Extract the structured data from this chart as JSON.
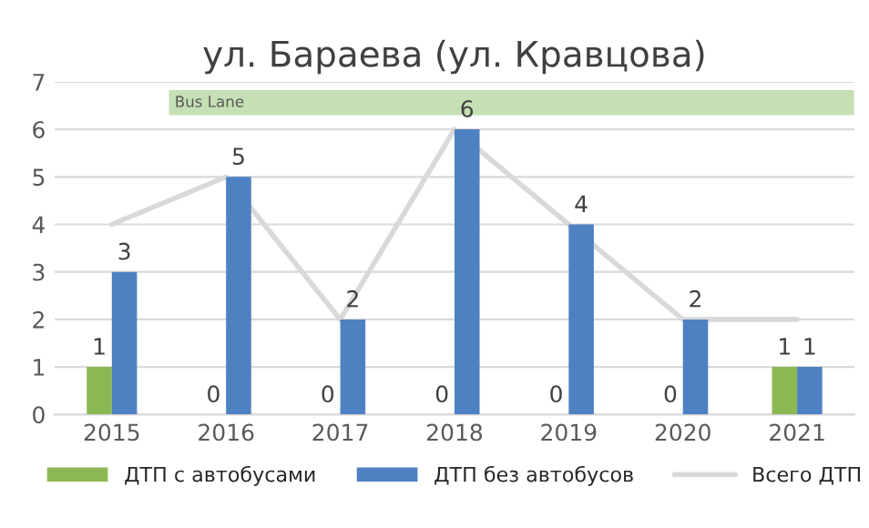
{
  "chart_data": {
    "type": "bar",
    "title": "ул. Бараева (ул. Кравцова)",
    "categories": [
      "2015",
      "2016",
      "2017",
      "2018",
      "2019",
      "2020",
      "2021"
    ],
    "series": [
      {
        "name": "ДТП с автобусами",
        "color": "#8cb854",
        "values": [
          1,
          0,
          0,
          0,
          0,
          0,
          1
        ],
        "value_labels": [
          "1",
          "0",
          "0",
          "0",
          "0",
          "0",
          "1"
        ]
      },
      {
        "name": "ДТП без автобусов",
        "color": "#4e81c1",
        "values": [
          3,
          5,
          2,
          6,
          4,
          2,
          1
        ],
        "value_labels": [
          "3",
          "5",
          "2",
          "6",
          "4",
          "2",
          "1"
        ]
      },
      {
        "name": "Всего ДТП",
        "type": "line",
        "color": "#d9d9d9",
        "values": [
          4,
          5,
          2,
          6,
          4,
          2,
          2
        ]
      }
    ],
    "bands": [
      {
        "axis": "x",
        "from": "2016",
        "to": "2021",
        "label": "Bus Lane",
        "color": "#c5e0b4"
      }
    ],
    "ylim": [
      0,
      7
    ],
    "yticks": [
      0,
      1,
      2,
      3,
      4,
      5,
      6,
      7
    ],
    "grid": "y",
    "legend": "bottom"
  }
}
